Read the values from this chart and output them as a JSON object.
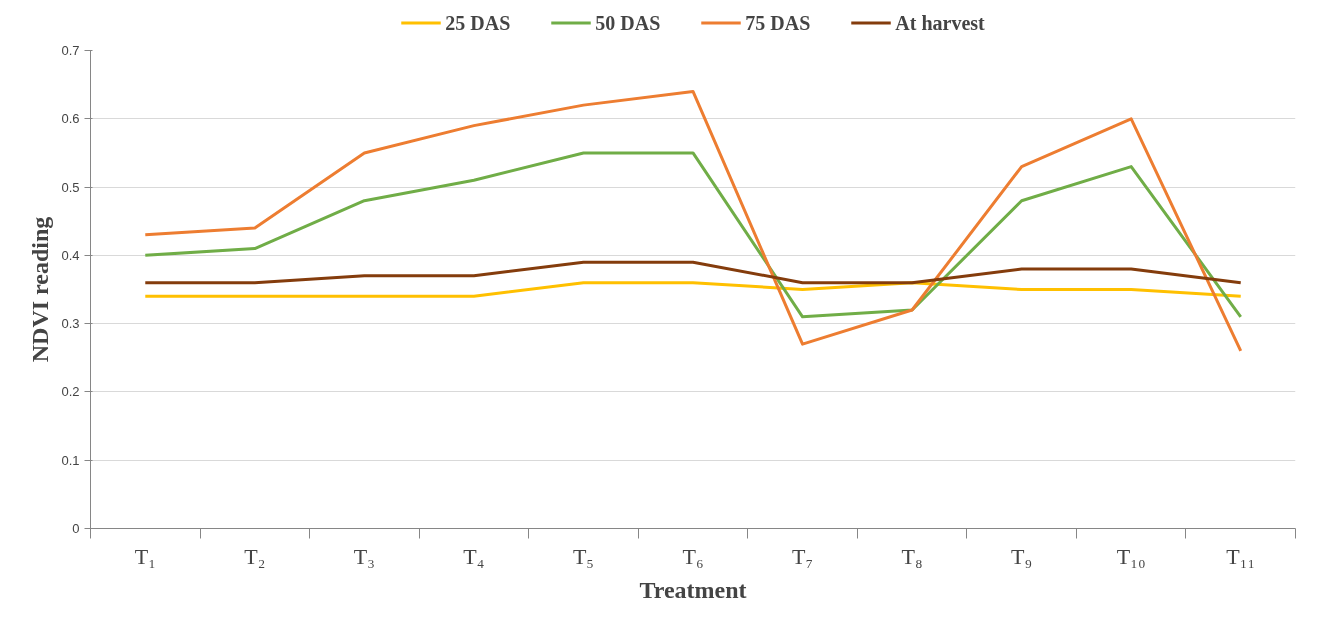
{
  "chart_data": {
    "type": "line",
    "xlabel": "Treatment",
    "ylabel": "NDVI reading",
    "categories": [
      "T₁",
      "T₂",
      "T₃",
      "T₄",
      "T₅",
      "T₆",
      "T₇",
      "T₈",
      "T₉",
      "T₁₀",
      "T₁₁"
    ],
    "series": [
      {
        "name": "25 DAS",
        "color": "#ffc000",
        "values": [
          0.34,
          0.34,
          0.34,
          0.34,
          0.36,
          0.36,
          0.35,
          0.36,
          0.35,
          0.35,
          0.34
        ]
      },
      {
        "name": "50 DAS",
        "color": "#70ad47",
        "values": [
          0.4,
          0.41,
          0.48,
          0.51,
          0.55,
          0.55,
          0.31,
          0.32,
          0.48,
          0.53,
          0.31
        ]
      },
      {
        "name": "75 DAS",
        "color": "#ed7d31",
        "values": [
          0.43,
          0.44,
          0.55,
          0.59,
          0.62,
          0.64,
          0.27,
          0.32,
          0.53,
          0.6,
          0.26
        ]
      },
      {
        "name": "At harvest",
        "color": "#843c0c",
        "values": [
          0.36,
          0.36,
          0.37,
          0.37,
          0.39,
          0.39,
          0.36,
          0.36,
          0.38,
          0.38,
          0.36
        ]
      }
    ],
    "ylim": [
      0,
      0.7
    ],
    "yticks": [
      0,
      0.1,
      0.2,
      0.3,
      0.4,
      0.5,
      0.6,
      0.7
    ],
    "grid": "y",
    "legend": "top",
    "marker": "none",
    "line_style": "solid"
  }
}
